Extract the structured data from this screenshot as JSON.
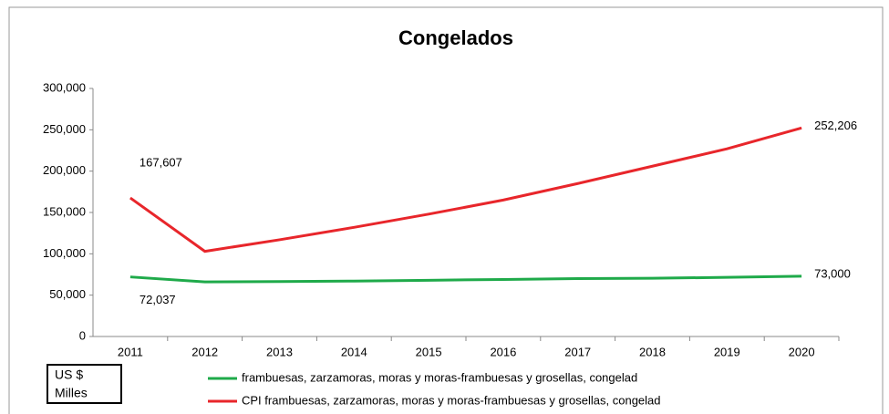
{
  "chart_data": {
    "type": "line",
    "title": "Congelados",
    "categories": [
      "2011",
      "2012",
      "2013",
      "2014",
      "2015",
      "2016",
      "2017",
      "2018",
      "2019",
      "2020"
    ],
    "series": [
      {
        "name": "frambuesas, zarzamoras, moras y moras-frambuesas y grosellas, congelad",
        "color": "#1faa4a",
        "values": [
          72037,
          66000,
          66500,
          67000,
          68000,
          69000,
          70000,
          70500,
          71500,
          73000
        ],
        "value_labels": [
          "72,037",
          null,
          null,
          null,
          null,
          null,
          null,
          null,
          null,
          "73,000"
        ]
      },
      {
        "name": "CPI frambuesas, zarzamoras, moras y moras-frambuesas y grosellas, congelad",
        "color": "#e8262b",
        "values": [
          167607,
          103000,
          117000,
          132000,
          148000,
          165000,
          185000,
          206000,
          227000,
          252206
        ],
        "value_labels": [
          "167,607",
          null,
          null,
          null,
          null,
          null,
          null,
          null,
          null,
          "252,206"
        ]
      }
    ],
    "ylim": [
      0,
      300000
    ],
    "yticks": [
      0,
      {
        "value": 50000,
        "label": "50,000"
      },
      {
        "value": 100000,
        "label": "100,000"
      },
      {
        "value": 150000,
        "label": "150,000"
      },
      {
        "value": 200000,
        "label": "200,000"
      },
      {
        "value": 250000,
        "label": "250,000"
      },
      {
        "value": 300000,
        "label": "300,000"
      }
    ],
    "unit_box": [
      "US $",
      "Milles"
    ]
  }
}
